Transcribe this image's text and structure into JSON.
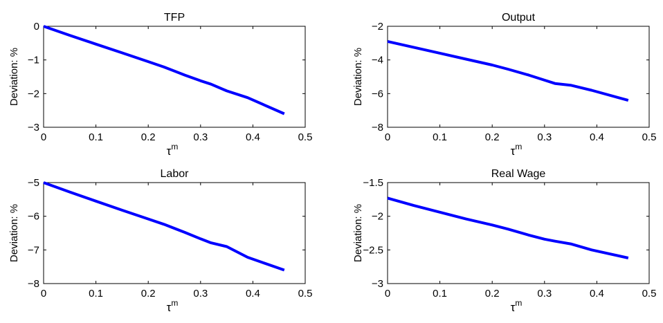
{
  "chart_data": [
    {
      "type": "line",
      "title": "TFP",
      "xlabel": "τ",
      "xlabel_sup": "m",
      "ylabel": "Deviation: %",
      "xlim": [
        0,
        0.5
      ],
      "ylim": [
        -3,
        0
      ],
      "xticks": [
        "0",
        "0.1",
        "0.2",
        "0.3",
        "0.4",
        "0.5"
      ],
      "yticks": [
        "−3",
        "−2",
        "−1",
        "0"
      ],
      "grid": false,
      "color": "#0000ff",
      "x": [
        0,
        0.05,
        0.1,
        0.15,
        0.2,
        0.23,
        0.27,
        0.3,
        0.32,
        0.35,
        0.39,
        0.46
      ],
      "y": [
        0,
        -0.27,
        -0.53,
        -0.79,
        -1.05,
        -1.21,
        -1.45,
        -1.62,
        -1.72,
        -1.92,
        -2.12,
        -2.6
      ]
    },
    {
      "type": "line",
      "title": "Output",
      "xlabel": "τ",
      "xlabel_sup": "m",
      "ylabel": "Deviation: %",
      "xlim": [
        0,
        0.5
      ],
      "ylim": [
        -8,
        -2
      ],
      "xticks": [
        "0",
        "0.1",
        "0.2",
        "0.3",
        "0.4",
        "0.5"
      ],
      "yticks": [
        "−8",
        "−6",
        "−4",
        "−2"
      ],
      "grid": false,
      "color": "#0000ff",
      "x": [
        0,
        0.05,
        0.1,
        0.15,
        0.2,
        0.23,
        0.27,
        0.3,
        0.32,
        0.35,
        0.39,
        0.46
      ],
      "y": [
        -2.9,
        -3.25,
        -3.6,
        -3.95,
        -4.3,
        -4.55,
        -4.9,
        -5.2,
        -5.4,
        -5.5,
        -5.8,
        -6.4
      ]
    },
    {
      "type": "line",
      "title": "Labor",
      "xlabel": "τ",
      "xlabel_sup": "m",
      "ylabel": "Deviation: %",
      "xlim": [
        0,
        0.5
      ],
      "ylim": [
        -8,
        -5
      ],
      "xticks": [
        "0",
        "0.1",
        "0.2",
        "0.3",
        "0.4",
        "0.5"
      ],
      "yticks": [
        "−8",
        "−7",
        "−6",
        "−5"
      ],
      "grid": false,
      "color": "#0000ff",
      "x": [
        0,
        0.05,
        0.1,
        0.15,
        0.2,
        0.23,
        0.27,
        0.3,
        0.32,
        0.35,
        0.39,
        0.46
      ],
      "y": [
        -5,
        -5.28,
        -5.55,
        -5.82,
        -6.08,
        -6.24,
        -6.48,
        -6.67,
        -6.79,
        -6.9,
        -7.22,
        -7.6
      ]
    },
    {
      "type": "line",
      "title": "Real Wage",
      "xlabel": "τ",
      "xlabel_sup": "m",
      "ylabel": "Deviation: %",
      "xlim": [
        0,
        0.5
      ],
      "ylim": [
        -3,
        -1.5
      ],
      "xticks": [
        "0",
        "0.1",
        "0.2",
        "0.3",
        "0.4",
        "0.5"
      ],
      "yticks": [
        "−3",
        "−2.5",
        "−2",
        "−1.5"
      ],
      "grid": false,
      "color": "#0000ff",
      "x": [
        0,
        0.05,
        0.1,
        0.15,
        0.2,
        0.23,
        0.27,
        0.3,
        0.32,
        0.35,
        0.39,
        0.46
      ],
      "y": [
        -1.73,
        -1.84,
        -1.94,
        -2.04,
        -2.13,
        -2.19,
        -2.28,
        -2.34,
        -2.37,
        -2.41,
        -2.5,
        -2.62
      ]
    }
  ]
}
